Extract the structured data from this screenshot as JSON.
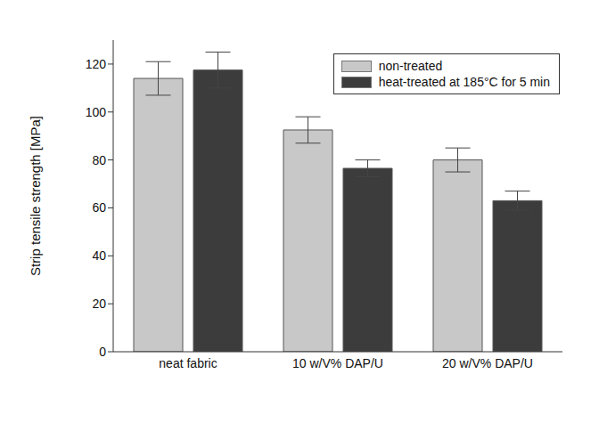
{
  "chart_data": {
    "type": "bar",
    "y_label": "Strip tensile strength [MPa]",
    "categories": [
      "neat fabric",
      "10 w/V% DAP/U",
      "20 w/V% DAP/U"
    ],
    "series": [
      {
        "name": "non-treated",
        "color": "#c8c8c8",
        "values": [
          114,
          92.5,
          80
        ],
        "errors": [
          7,
          5.5,
          5
        ]
      },
      {
        "name": "heat-treated at 185°C for 5 min",
        "color": "#3c3c3c",
        "values": [
          117.5,
          76.5,
          63
        ],
        "errors": [
          7.5,
          3.5,
          4
        ]
      }
    ],
    "ylim": [
      0,
      130
    ],
    "yticks": [
      0,
      20,
      40,
      60,
      80,
      100,
      120
    ],
    "grid": false,
    "legend": "upper right"
  }
}
